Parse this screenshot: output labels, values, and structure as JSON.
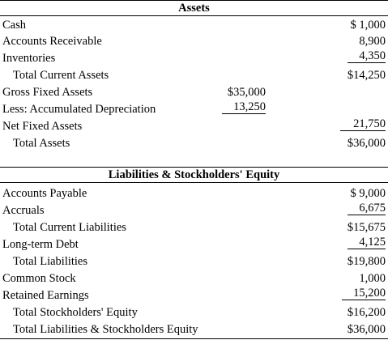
{
  "assets": {
    "header": "Assets",
    "rows": [
      {
        "label": "Cash",
        "value": "$ 1,000"
      },
      {
        "label": "Accounts Receivable",
        "value": "8,900"
      },
      {
        "label": "Inventories",
        "value": "4,350"
      },
      {
        "label": "Total Current Assets",
        "value": "$14,250"
      },
      {
        "label": "Gross Fixed Assets",
        "mid": "$35,000"
      },
      {
        "label": "Less: Accumulated Depreciation",
        "mid": "13,250"
      },
      {
        "label": "Net Fixed Assets",
        "value": "21,750"
      },
      {
        "label": "Total Assets",
        "value": "$36,000"
      }
    ]
  },
  "liabilities": {
    "header": "Liabilities & Stockholders' Equity",
    "rows": [
      {
        "label": "Accounts Payable",
        "value": "$ 9,000"
      },
      {
        "label": "Accruals",
        "value": "6,675"
      },
      {
        "label": "Total Current Liabilities",
        "value": "$15,675"
      },
      {
        "label": "Long-term Debt",
        "value": "4,125"
      },
      {
        "label": "Total Liabilities",
        "value": "$19,800"
      },
      {
        "label": "Common Stock",
        "value": "1,000"
      },
      {
        "label": "Retained Earnings",
        "value": "15,200"
      },
      {
        "label": "Total Stockholders' Equity",
        "value": "$16,200"
      },
      {
        "label": "Total Liabilities & Stockholders Equity",
        "value": "$36,000"
      }
    ]
  }
}
